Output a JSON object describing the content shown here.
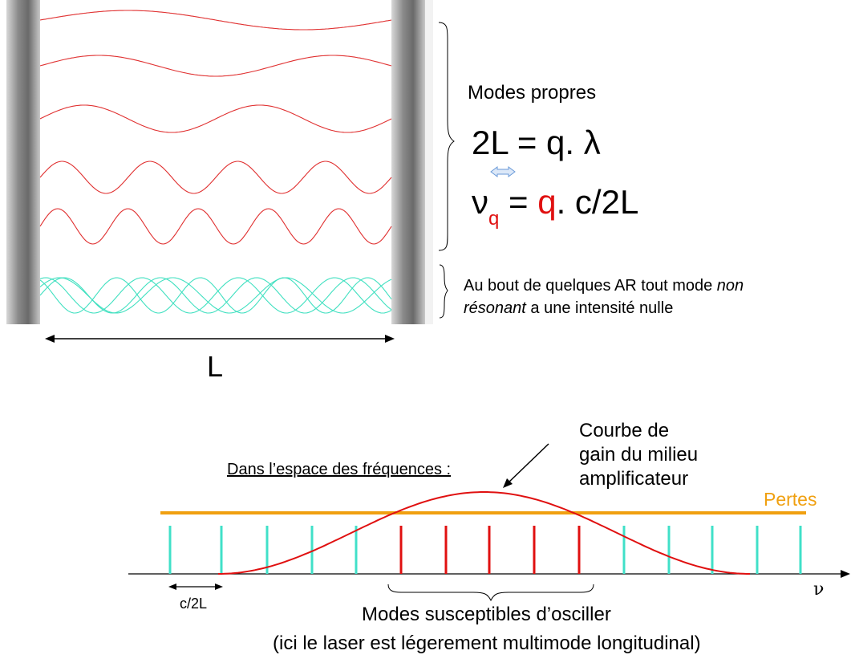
{
  "cavity": {
    "modes_title": "Modes propres",
    "eq1_text": "2L = q. λ",
    "eq2_nu": "ν",
    "eq2_sub": "q",
    "eq2_mid": " = ",
    "eq2_q": "q",
    "eq2_rest": ". c/2L",
    "note_line1_text": "Au bout de quelques AR tout mode ",
    "note_line1_italic": "non",
    "note_line2_italic": "résonant",
    "note_line2_text": " a une intensité nulle",
    "length_label": "L",
    "colors": {
      "resonant": "#e03030",
      "nonresonant": "#40e0c0",
      "mirror": "#777777",
      "equiv_arrow": "#8fb8e8"
    }
  },
  "spectrum": {
    "section_label": "Dans l’espace des fréquences :",
    "gain_line1": "Courbe de",
    "gain_line2": "gain du milieu",
    "gain_line3": "amplificateur",
    "losses_label": "Pertes",
    "axis_label": "ν",
    "spacing_label": "c/2L",
    "oscillating_label": "Modes susceptibles d’osciller",
    "multimode_label": "(ici le laser est légerement multimode longitudinal)",
    "colors": {
      "gain": "#e01010",
      "losses": "#f0a010",
      "mode_above": "#e01010",
      "mode_below": "#40e0c8"
    }
  }
}
